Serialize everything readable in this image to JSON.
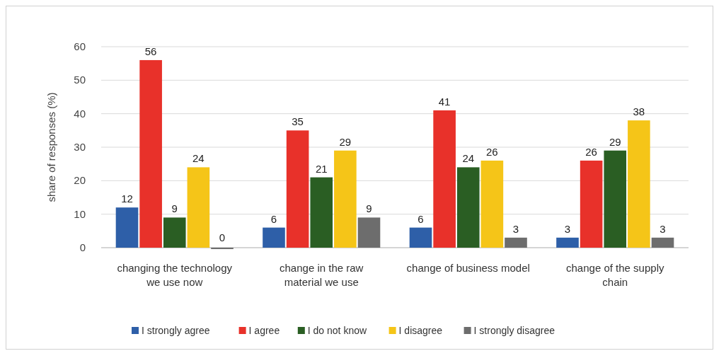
{
  "chart_data": {
    "type": "bar",
    "ylabel": "share of responses (%)",
    "categories": [
      "changing the technology we use now",
      "change in the raw material we use",
      "change of business model",
      "change of the supply chain"
    ],
    "series": [
      {
        "name": "I strongly agree",
        "color": "#2e5fa8",
        "values": [
          12,
          6,
          6,
          3
        ]
      },
      {
        "name": "I agree",
        "color": "#e8312a",
        "values": [
          56,
          35,
          41,
          26
        ]
      },
      {
        "name": "I do not know",
        "color": "#2a5e23",
        "values": [
          9,
          21,
          24,
          29
        ]
      },
      {
        "name": "I disagree",
        "color": "#f5c518",
        "values": [
          24,
          29,
          26,
          38
        ]
      },
      {
        "name": "I strongly disagree",
        "color": "#6d6d6d",
        "values": [
          0,
          9,
          3,
          3
        ]
      }
    ],
    "ylim": [
      0,
      60
    ],
    "yticks": [
      0,
      10,
      20,
      30,
      40,
      50,
      60
    ],
    "grid": "y",
    "legend": "bottom",
    "data_labels": true
  }
}
